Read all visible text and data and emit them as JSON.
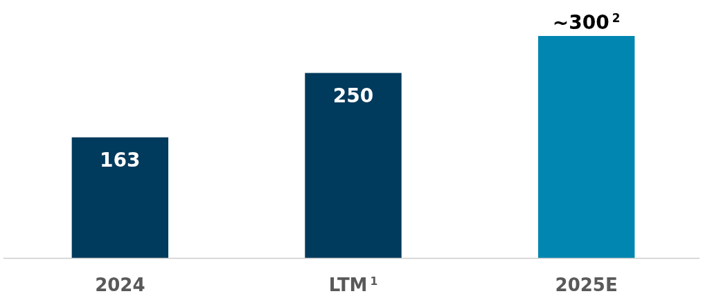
{
  "chart_data": {
    "type": "bar",
    "categories": [
      "2024",
      "LTM$^{1}$",
      "2025E"
    ],
    "values": [
      163,
      250,
      300
    ],
    "colors": [
      "#003a5c",
      "#003a5c",
      "#0086b0"
    ],
    "value_labels": [
      "163",
      "250",
      "~300$^{2}$"
    ]
  }
}
